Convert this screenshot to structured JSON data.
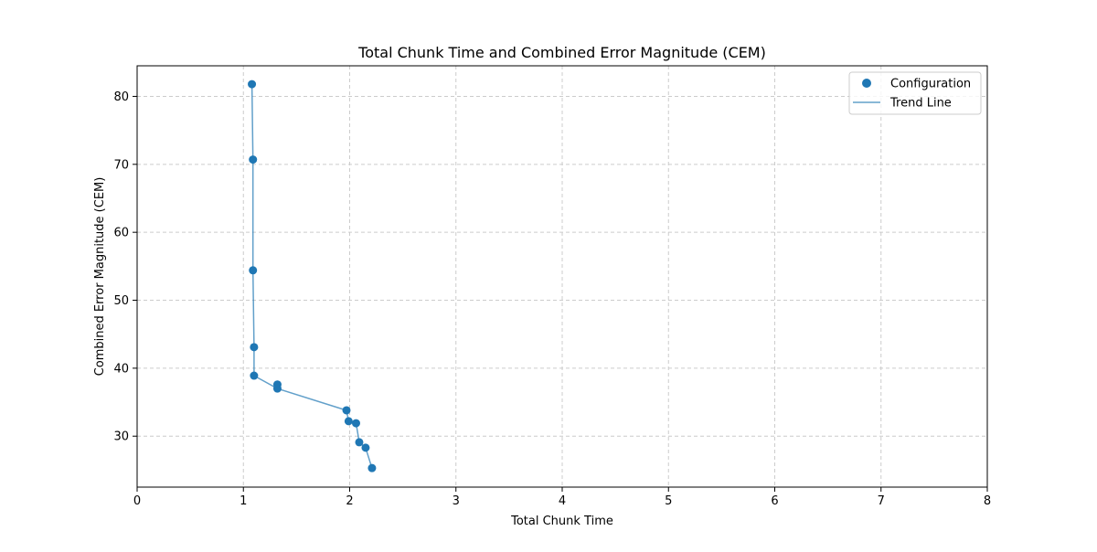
{
  "chart_data": {
    "type": "scatter",
    "title": "Total Chunk Time and Combined Error Magnitude (CEM)",
    "xlabel": "Total Chunk Time",
    "ylabel": "Combined Error Magnitude (CEM)",
    "xlim": [
      0,
      8
    ],
    "ylim": [
      22.5,
      84.5
    ],
    "xticks": [
      0,
      1,
      2,
      3,
      4,
      5,
      6,
      7,
      8
    ],
    "yticks": [
      30,
      40,
      50,
      60,
      70,
      80
    ],
    "grid": true,
    "legend_position": "top-right",
    "series": [
      {
        "name": "Configuration",
        "kind": "scatter",
        "color": "#1f77b4",
        "points": [
          {
            "x": 1.08,
            "y": 81.8
          },
          {
            "x": 1.09,
            "y": 70.7
          },
          {
            "x": 1.09,
            "y": 54.4
          },
          {
            "x": 1.1,
            "y": 43.1
          },
          {
            "x": 1.1,
            "y": 38.9
          },
          {
            "x": 1.32,
            "y": 37.6
          },
          {
            "x": 1.32,
            "y": 37.0
          },
          {
            "x": 1.97,
            "y": 33.8
          },
          {
            "x": 1.99,
            "y": 32.2
          },
          {
            "x": 2.06,
            "y": 31.9
          },
          {
            "x": 2.09,
            "y": 29.1
          },
          {
            "x": 2.15,
            "y": 28.3
          },
          {
            "x": 2.21,
            "y": 25.3
          }
        ]
      },
      {
        "name": "Trend Line",
        "kind": "line",
        "color": "#1f77b4",
        "points": [
          {
            "x": 1.08,
            "y": 81.8
          },
          {
            "x": 1.09,
            "y": 70.7
          },
          {
            "x": 1.09,
            "y": 54.4
          },
          {
            "x": 1.1,
            "y": 43.1
          },
          {
            "x": 1.1,
            "y": 38.9
          },
          {
            "x": 1.32,
            "y": 37.0
          },
          {
            "x": 1.97,
            "y": 33.8
          },
          {
            "x": 1.99,
            "y": 32.2
          },
          {
            "x": 2.06,
            "y": 31.9
          },
          {
            "x": 2.09,
            "y": 29.1
          },
          {
            "x": 2.15,
            "y": 28.3
          },
          {
            "x": 2.21,
            "y": 25.3
          }
        ]
      }
    ]
  }
}
